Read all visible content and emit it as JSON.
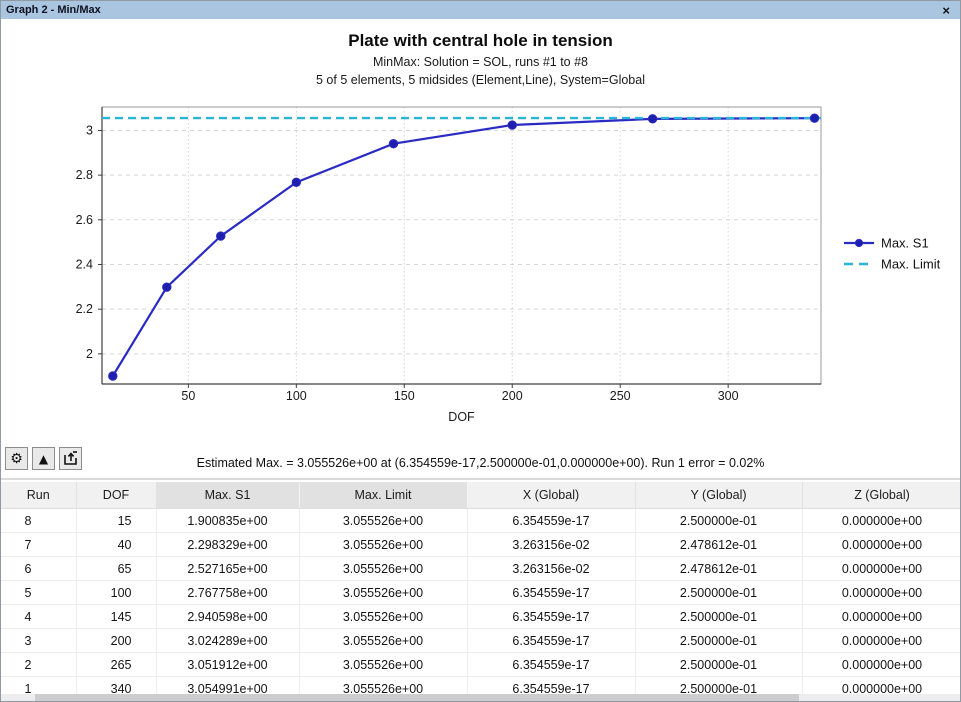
{
  "window": {
    "title": "Graph 2 - Min/Max",
    "close_label": "×"
  },
  "chart": {
    "title": "Plate with central hole in tension",
    "subtitle1": "MinMax: Solution = SOL, runs #1 to #8",
    "subtitle2": "5 of 5 elements, 5 midsides (Element,Line), System=Global"
  },
  "chart_data": {
    "type": "line",
    "title": "Plate with central hole in tension",
    "subtitle1": "MinMax: Solution = SOL, runs #1 to #8",
    "subtitle2": "5 of 5 elements, 5 midsides (Element,Line), System=Global",
    "xlabel": "DOF",
    "ylabel": "",
    "xlim": [
      10,
      343
    ],
    "ylim": [
      1.865,
      3.105
    ],
    "xticks": [
      50,
      100,
      150,
      200,
      250,
      300
    ],
    "xtick_labels": [
      "50",
      "100",
      "150",
      "200",
      "250",
      "300"
    ],
    "yticks": [
      2,
      2.2,
      2.4,
      2.6,
      2.8,
      3
    ],
    "ytick_labels": [
      "2",
      "2.2",
      "2.4",
      "2.6",
      "2.8",
      "3"
    ],
    "grid": true,
    "legend_position": "right",
    "series": [
      {
        "name": "Max. S1",
        "style": "solid-line-with-markers",
        "color": "#2a2ac4",
        "marker_color": "#1f1fae",
        "x": [
          15,
          40,
          65,
          100,
          145,
          200,
          265,
          340
        ],
        "y": [
          1.900835,
          2.298329,
          2.527165,
          2.767758,
          2.940598,
          3.024289,
          3.051912,
          3.054991
        ]
      },
      {
        "name": "Max. Limit",
        "style": "dashed-horizontal-line",
        "color": "#2ab5d8",
        "value": 3.055526
      }
    ]
  },
  "toolbar": {
    "buttons": [
      {
        "id": "settings",
        "glyph": "⚙"
      },
      {
        "id": "raise-graph",
        "glyph": "▲"
      },
      {
        "id": "export-graph",
        "glyph": ""
      }
    ],
    "status": "Estimated Max. = 3.055526e+00 at (6.354559e-17,2.500000e-01,0.000000e+00). Run 1 error =  0.02%"
  },
  "table": {
    "columns": [
      {
        "label": "Run",
        "highlight": false
      },
      {
        "label": "DOF",
        "highlight": false
      },
      {
        "label": "Max. S1",
        "highlight": true
      },
      {
        "label": "Max. Limit",
        "highlight": true
      },
      {
        "label": "X (Global)",
        "highlight": false
      },
      {
        "label": "Y (Global)",
        "highlight": false
      },
      {
        "label": "Z (Global)",
        "highlight": false
      }
    ],
    "rows": [
      [
        "8",
        "15",
        "1.900835e+00",
        "3.055526e+00",
        "6.354559e-17",
        "2.500000e-01",
        "0.000000e+00"
      ],
      [
        "7",
        "40",
        "2.298329e+00",
        "3.055526e+00",
        "3.263156e-02",
        "2.478612e-01",
        "0.000000e+00"
      ],
      [
        "6",
        "65",
        "2.527165e+00",
        "3.055526e+00",
        "3.263156e-02",
        "2.478612e-01",
        "0.000000e+00"
      ],
      [
        "5",
        "100",
        "2.767758e+00",
        "3.055526e+00",
        "6.354559e-17",
        "2.500000e-01",
        "0.000000e+00"
      ],
      [
        "4",
        "145",
        "2.940598e+00",
        "3.055526e+00",
        "6.354559e-17",
        "2.500000e-01",
        "0.000000e+00"
      ],
      [
        "3",
        "200",
        "3.024289e+00",
        "3.055526e+00",
        "6.354559e-17",
        "2.500000e-01",
        "0.000000e+00"
      ],
      [
        "2",
        "265",
        "3.051912e+00",
        "3.055526e+00",
        "6.354559e-17",
        "2.500000e-01",
        "0.000000e+00"
      ],
      [
        "1",
        "340",
        "3.054991e+00",
        "3.055526e+00",
        "6.354559e-17",
        "2.500000e-01",
        "0.000000e+00"
      ]
    ]
  }
}
